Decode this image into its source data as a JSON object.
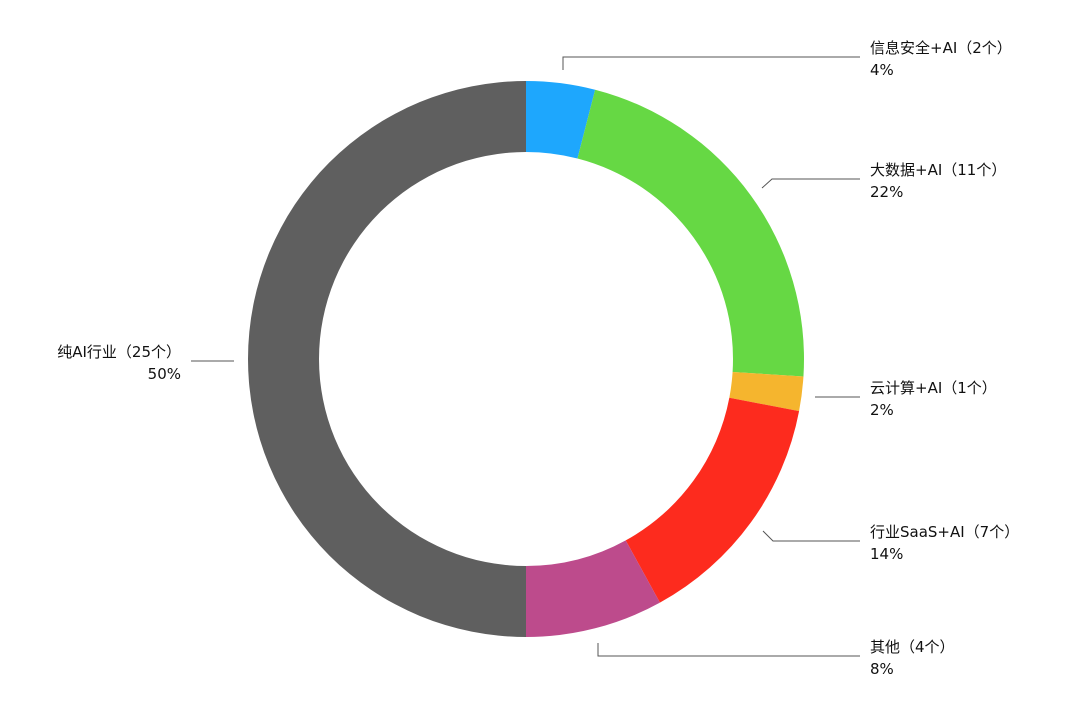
{
  "chart_data": {
    "type": "pie",
    "donut": true,
    "legend": "none",
    "slices": [
      {
        "label": "信息安全+AI（2个）",
        "percent_label": "4%",
        "value": 4,
        "color": "#1EA7FD"
      },
      {
        "label": "大数据+AI（11个）",
        "percent_label": "22%",
        "value": 22,
        "color": "#66D844"
      },
      {
        "label": "云计算+AI（1个）",
        "percent_label": "2%",
        "value": 2,
        "color": "#F5B52E"
      },
      {
        "label": "行业SaaS+AI（7个）",
        "percent_label": "14%",
        "value": 14,
        "color": "#FD2B1E"
      },
      {
        "label": "其他（4个）",
        "percent_label": "8%",
        "value": 8,
        "color": "#BD4B8C"
      },
      {
        "label": "纯AI行业（25个）",
        "percent_label": "50%",
        "value": 50,
        "color": "#5F5F5F"
      }
    ]
  }
}
